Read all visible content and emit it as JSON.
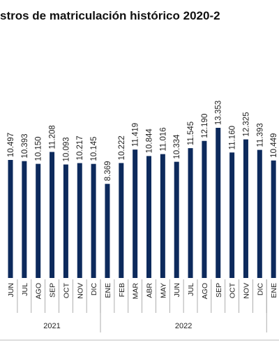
{
  "chart_data": {
    "type": "bar",
    "title": "stros de matriculación histórico 2020-2",
    "categories": [
      "JUN",
      "JUL",
      "AGO",
      "SEP",
      "OCT",
      "NOV",
      "DIC",
      "ENE",
      "FEB",
      "MAR",
      "ABR",
      "MAY",
      "JUN",
      "JUL",
      "AGO",
      "SEP",
      "OCT",
      "NOV",
      "DIC",
      "ENE"
    ],
    "values": [
      10497,
      10393,
      10150,
      11208,
      10093,
      10217,
      10145,
      8369,
      10222,
      11419,
      10844,
      11016,
      10334,
      11545,
      12190,
      13353,
      11160,
      12325,
      11393,
      10449
    ],
    "value_labels": [
      "10.497",
      "10.393",
      "10.150",
      "11.208",
      "10.093",
      "10.217",
      "10.145",
      "8.369",
      "10.222",
      "11.419",
      "10.844",
      "11.016",
      "10.334",
      "11.545",
      "12.190",
      "13.353",
      "11.160",
      "12.325",
      "11.393",
      "10.449"
    ],
    "color": "#0d2a5c",
    "groups": [
      {
        "name": "2021",
        "count": 7
      },
      {
        "name": "2022",
        "count": 12
      }
    ]
  }
}
